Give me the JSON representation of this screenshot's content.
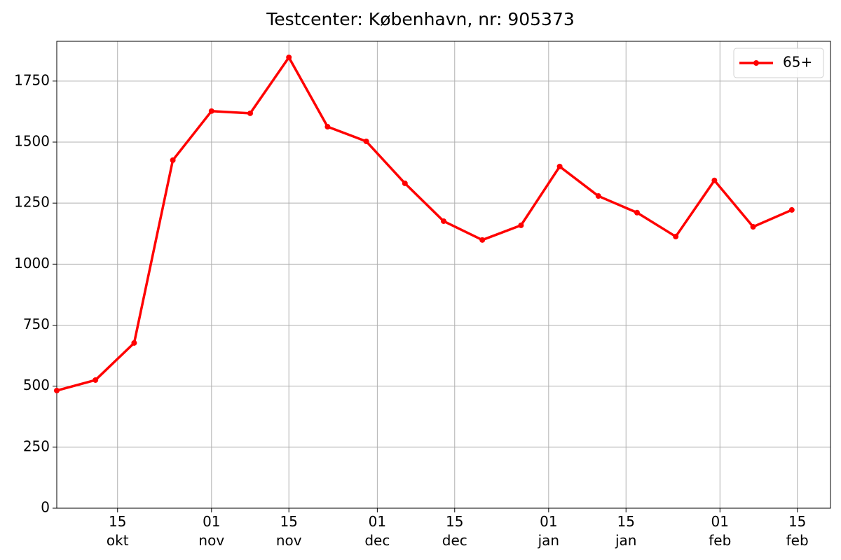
{
  "chart_data": {
    "type": "line",
    "title": "Testcenter: København, nr: 905373",
    "x": [
      "10-04",
      "10-11",
      "10-18",
      "10-25",
      "11-01",
      "11-08",
      "11-15",
      "11-22",
      "11-29",
      "12-06",
      "12-13",
      "12-20",
      "12-27",
      "01-03",
      "01-10",
      "01-17",
      "01-24",
      "01-31",
      "02-07",
      "02-14"
    ],
    "series": [
      {
        "name": "65+",
        "color": "#ff0000",
        "values": [
          482,
          525,
          677,
          1426,
          1627,
          1618,
          1847,
          1563,
          1503,
          1331,
          1176,
          1099,
          1159,
          1400,
          1279,
          1211,
          1113,
          1343,
          1153,
          1222
        ]
      }
    ],
    "xlim": [
      "10-04",
      "02-21"
    ],
    "xticks": [
      {
        "value": "10-15",
        "label": "15\nokt"
      },
      {
        "value": "11-01",
        "label": "01\nnov"
      },
      {
        "value": "11-15",
        "label": "15\nnov"
      },
      {
        "value": "12-01",
        "label": "01\ndec"
      },
      {
        "value": "12-15",
        "label": "15\ndec"
      },
      {
        "value": "01-01",
        "label": "01\njan"
      },
      {
        "value": "01-15",
        "label": "15\njan"
      },
      {
        "value": "02-01",
        "label": "01\nfeb"
      },
      {
        "value": "02-15",
        "label": "15\nfeb"
      }
    ],
    "ylim": [
      0,
      1913
    ],
    "yticks": [
      0,
      250,
      500,
      750,
      1000,
      1250,
      1500,
      1750
    ],
    "grid": true,
    "legend": "upper right"
  }
}
